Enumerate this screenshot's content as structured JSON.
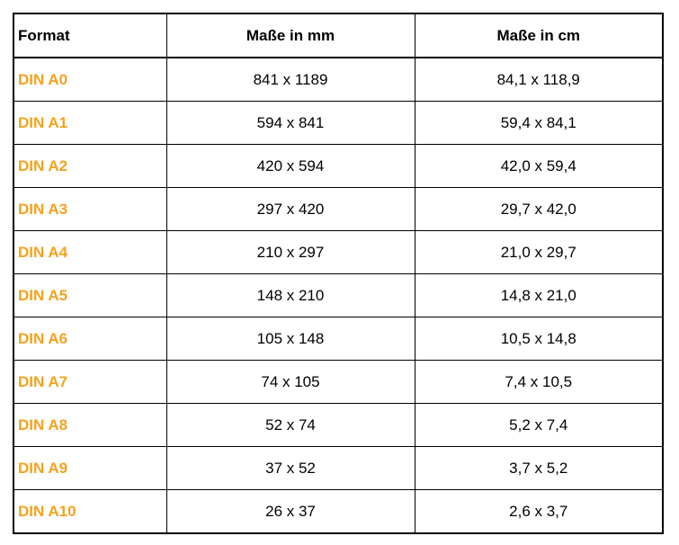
{
  "table": {
    "headers": [
      "Format",
      "Maße in mm",
      "Maße in cm"
    ],
    "accent_color": "#f5a21c",
    "rows": [
      {
        "format": "DIN A0",
        "mm": "841 x 1189",
        "cm": "84,1 x 118,9"
      },
      {
        "format": "DIN A1",
        "mm": "594 x 841",
        "cm": "59,4 x 84,1"
      },
      {
        "format": "DIN A2",
        "mm": "420 x 594",
        "cm": "42,0 x 59,4"
      },
      {
        "format": "DIN A3",
        "mm": "297 x 420",
        "cm": "29,7 x 42,0"
      },
      {
        "format": "DIN A4",
        "mm": "210 x 297",
        "cm": "21,0 x 29,7"
      },
      {
        "format": "DIN A5",
        "mm": "148 x 210",
        "cm": "14,8 x 21,0"
      },
      {
        "format": "DIN A6",
        "mm": "105 x 148",
        "cm": "10,5 x 14,8"
      },
      {
        "format": "DIN A7",
        "mm": "74 x 105",
        "cm": "7,4 x 10,5"
      },
      {
        "format": "DIN A8",
        "mm": "52 x 74",
        "cm": "5,2 x 7,4"
      },
      {
        "format": "DIN A9",
        "mm": "37 x 52",
        "cm": "3,7 x 5,2"
      },
      {
        "format": "DIN A10",
        "mm": "26 x 37",
        "cm": "2,6 x 3,7"
      }
    ]
  }
}
